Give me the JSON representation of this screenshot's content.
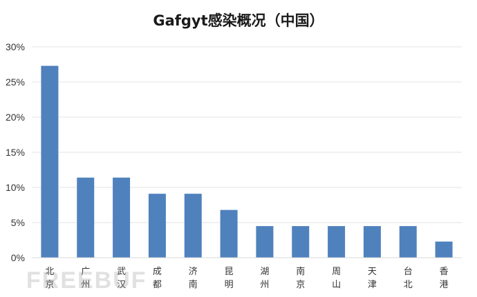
{
  "chart_data": {
    "type": "bar",
    "title": "Gafgyt感染概况（中国）",
    "xlabel": "",
    "ylabel": "",
    "ylim": [
      0,
      30
    ],
    "yticks": [
      "0%",
      "5%",
      "10%",
      "15%",
      "20%",
      "25%",
      "30%"
    ],
    "ytick_values": [
      0,
      5,
      10,
      15,
      20,
      25,
      30
    ],
    "grid": true,
    "categories": [
      "北京",
      "广州",
      "武汉",
      "成都",
      "济南",
      "昆明",
      "湖州",
      "南京",
      "周山",
      "天津",
      "台北",
      "香港"
    ],
    "values": [
      27.3,
      11.4,
      11.4,
      9.1,
      9.1,
      6.8,
      4.5,
      4.5,
      4.5,
      4.5,
      4.5,
      2.3
    ],
    "bar_color": "#4f81bd"
  },
  "watermark": "FREEBUF"
}
